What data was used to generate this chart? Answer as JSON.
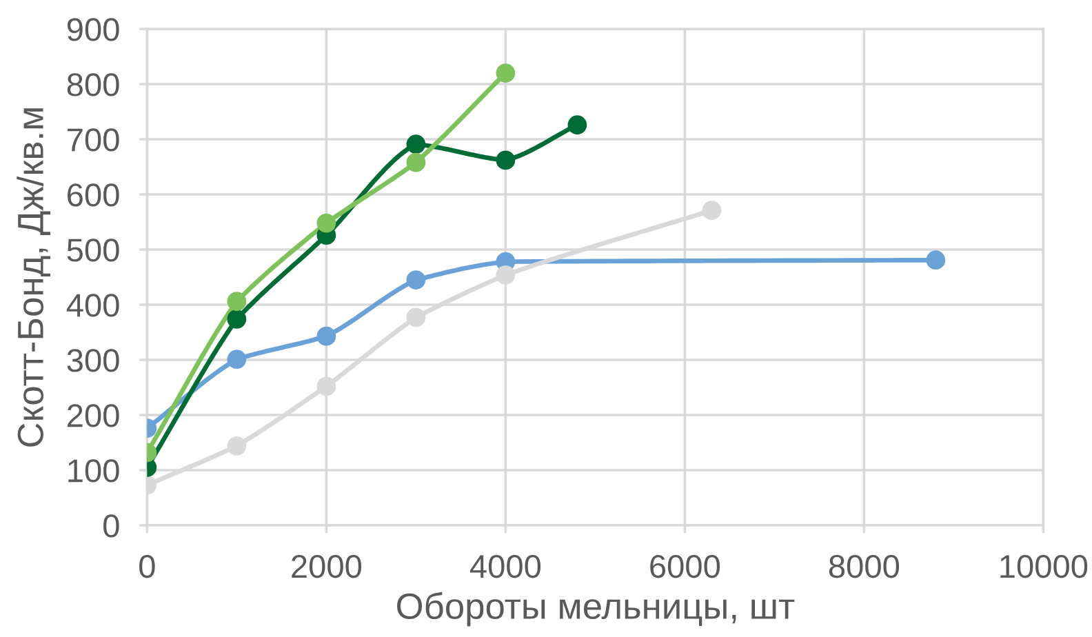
{
  "chart_data": {
    "type": "line",
    "xlabel": "Обороты мельницы, шт",
    "ylabel": "Скотт-Бонд, Дж/кв.м",
    "xlim": [
      0,
      10000
    ],
    "ylim": [
      0,
      900
    ],
    "xticks": [
      0,
      2000,
      4000,
      6000,
      8000,
      10000
    ],
    "yticks": [
      0,
      100,
      200,
      300,
      400,
      500,
      600,
      700,
      800,
      900
    ],
    "grid": true,
    "marker": "circle",
    "line_style": "solid",
    "series": [
      {
        "color": "#6aa2d8",
        "x": [
          0,
          1000,
          2000,
          3000,
          4000,
          8800
        ],
        "values": [
          176,
          301,
          343,
          445,
          478,
          481
        ]
      },
      {
        "color": "#d9d9d9",
        "x": [
          0,
          1000,
          2000,
          3000,
          4000,
          6300
        ],
        "values": [
          73,
          144,
          252,
          377,
          454,
          571
        ]
      },
      {
        "color": "#006b35",
        "x": [
          0,
          1000,
          2000,
          3000,
          4000,
          4800
        ],
        "values": [
          105,
          374,
          526,
          691,
          662,
          726
        ]
      },
      {
        "color": "#7dc25a",
        "x": [
          0,
          1000,
          2000,
          3000,
          4000
        ],
        "values": [
          132,
          406,
          548,
          658,
          820
        ]
      }
    ]
  }
}
